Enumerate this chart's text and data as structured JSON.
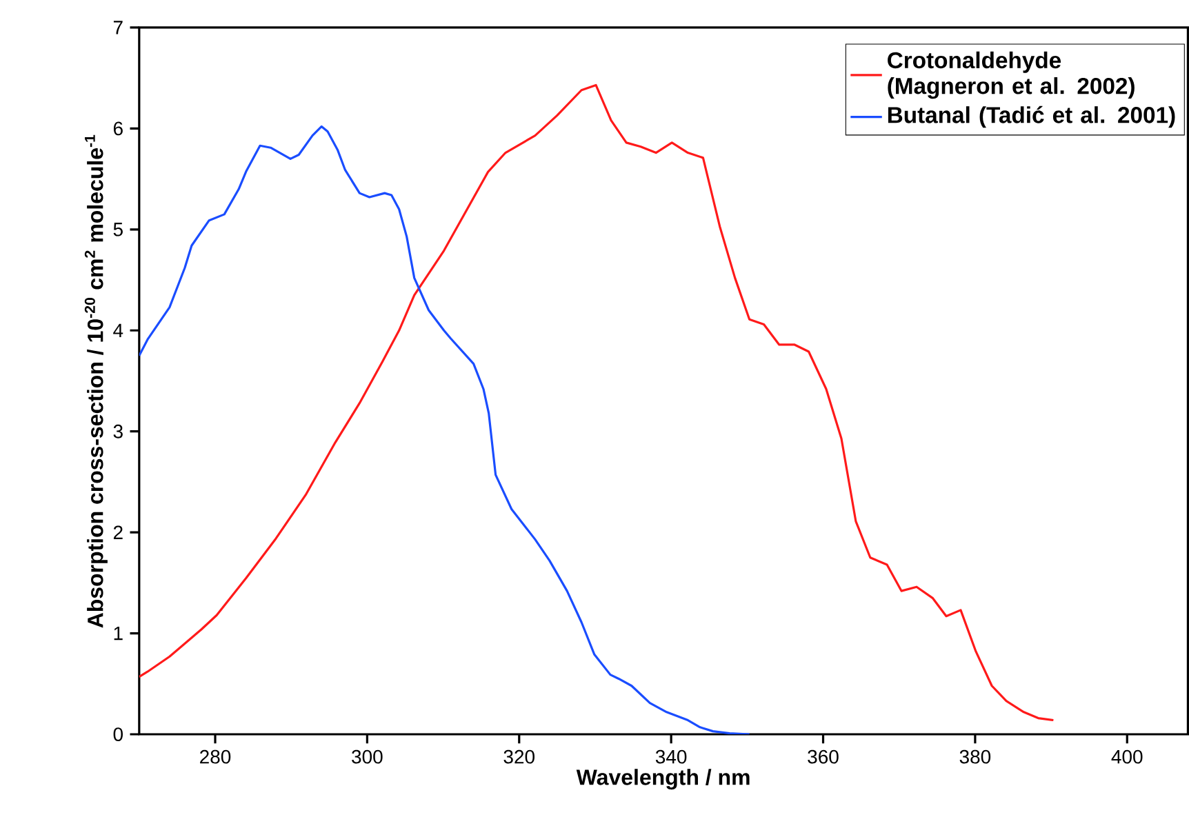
{
  "chart_data": {
    "type": "line",
    "xlabel": "Wavelength / nm",
    "ylabel": "Absorption cross-section / 10$^{-20}$ cm$^{2}$ molecule$^{-1}$",
    "xlim": [
      270,
      408
    ],
    "ylim": [
      0,
      7
    ],
    "xticks": [
      280,
      300,
      320,
      340,
      360,
      380,
      400
    ],
    "yticks": [
      0,
      1,
      2,
      3,
      4,
      5,
      6,
      7
    ],
    "grid": false,
    "legend": "top right",
    "line_style": "solid",
    "series": [
      {
        "name": "Crotonaldehyde (Magneron et al. 2002)",
        "color": "#ff1a1a",
        "x": [
          270,
          271.1,
          274,
          278.2,
          280.2,
          284.1,
          288,
          291.9,
          295.8,
          299,
          302,
          304.2,
          306.2,
          310.1,
          315.9,
          318.2,
          322.1,
          325,
          328.2,
          330.1,
          332.1,
          334.1,
          336,
          338,
          340.1,
          342.2,
          344.2,
          346.4,
          348.4,
          350.3,
          352.2,
          354.2,
          356.2,
          358.1,
          360.4,
          362.4,
          364.3,
          366.2,
          368.4,
          370.3,
          372.3,
          374.4,
          376.2,
          378.1,
          380.1,
          382.2,
          384.1,
          386.4,
          388.3,
          390.3
        ],
        "values": [
          0.57,
          0.62,
          0.77,
          1.04,
          1.18,
          1.55,
          1.94,
          2.37,
          2.89,
          3.28,
          3.69,
          4.0,
          4.35,
          4.79,
          5.57,
          5.76,
          5.93,
          6.13,
          6.38,
          6.43,
          6.08,
          5.86,
          5.82,
          5.76,
          5.86,
          5.76,
          5.71,
          5.03,
          4.52,
          4.11,
          4.06,
          3.86,
          3.86,
          3.79,
          3.42,
          2.93,
          2.11,
          1.75,
          1.68,
          1.42,
          1.46,
          1.35,
          1.17,
          1.23,
          0.82,
          0.48,
          0.33,
          0.22,
          0.16,
          0.14
        ]
      },
      {
        "name": "Butanal (Tadić et al. 2001)",
        "color": "#1a4dff",
        "x": [
          270,
          271.1,
          274,
          276,
          276.9,
          279.2,
          281.2,
          283.1,
          284.1,
          285.9,
          287.3,
          289.9,
          291,
          292.8,
          294,
          294.8,
          296.1,
          297.1,
          299,
          300.3,
          302.3,
          303.2,
          304.2,
          305.2,
          306.2,
          308.1,
          310.1,
          311,
          314,
          315.3,
          316,
          316.9,
          319,
          322.1,
          324,
          326.3,
          328.2,
          329.9,
          332,
          333.1,
          334.8,
          337.2,
          339.4,
          342.2,
          343.8,
          345.5,
          347.7,
          350.3
        ],
        "values": [
          3.75,
          3.91,
          4.23,
          4.62,
          4.84,
          5.09,
          5.15,
          5.4,
          5.58,
          5.83,
          5.81,
          5.7,
          5.74,
          5.93,
          6.02,
          5.97,
          5.79,
          5.59,
          5.36,
          5.32,
          5.36,
          5.34,
          5.2,
          4.93,
          4.52,
          4.2,
          4.0,
          3.92,
          3.67,
          3.42,
          3.18,
          2.57,
          2.23,
          1.93,
          1.72,
          1.42,
          1.11,
          0.79,
          0.59,
          0.55,
          0.48,
          0.31,
          0.22,
          0.14,
          0.07,
          0.03,
          0.01,
          0
        ]
      }
    ]
  }
}
